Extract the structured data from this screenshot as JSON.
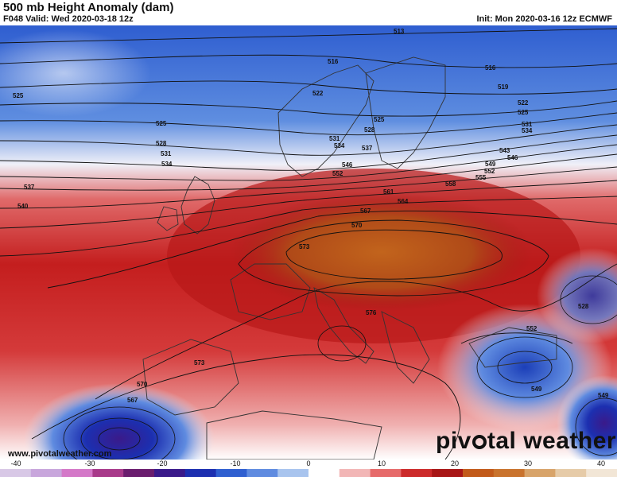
{
  "header": {
    "title": "500 mb Height Anomaly (dam)",
    "valid": "F048 Valid: Wed 2020-03-18 12z",
    "init": "Init: Mon 2020-03-16 12z ECMWF"
  },
  "map": {
    "contour_labels": [
      "513",
      "516",
      "516",
      "519",
      "522",
      "522",
      "525",
      "525",
      "525",
      "525",
      "528",
      "528",
      "531",
      "531",
      "531",
      "534",
      "534",
      "534",
      "537",
      "537",
      "540",
      "543",
      "546",
      "546",
      "549",
      "549",
      "552",
      "552",
      "552",
      "555",
      "558",
      "561",
      "564",
      "567",
      "570",
      "570",
      "573",
      "573",
      "576",
      "567",
      "528",
      "549"
    ]
  },
  "colorbar": {
    "ticks": [
      "-40",
      "-30",
      "-20",
      "-10",
      "0",
      "10",
      "20",
      "30",
      "40"
    ],
    "colors": [
      "#d8c8e6",
      "#c8a6dc",
      "#d478c8",
      "#a83a8a",
      "#6a1d6e",
      "#3a1a8a",
      "#1c2fb0",
      "#2f5fd0",
      "#5f8be0",
      "#a8c4ee",
      "#ffffff",
      "#f2b6b6",
      "#e66a6a",
      "#cc2a2a",
      "#a81616",
      "#c25a1a",
      "#c9732d",
      "#d8a46a",
      "#e6cba8",
      "#f2e6d6"
    ]
  },
  "footer": {
    "source": "www.pivotalweather.com",
    "logo_part1": "piv",
    "logo_part2": "tal weather"
  }
}
